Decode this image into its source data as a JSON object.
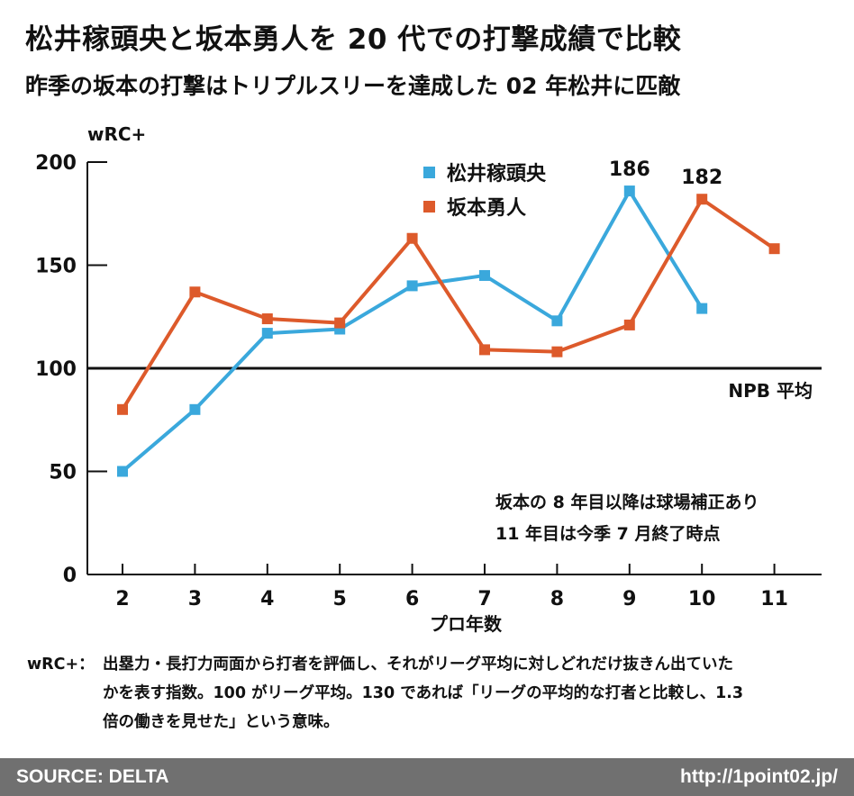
{
  "title": "松井稼頭央と坂本勇人を 20 代での打撃成績で比較",
  "subtitle": "昨季の坂本の打撃はトリプルスリーを達成した 02 年松井に匹敵",
  "chart_data": {
    "type": "line",
    "ylabel": "wRC+",
    "xlabel": "プロ年数",
    "categories": [
      2,
      3,
      4,
      5,
      6,
      7,
      8,
      9,
      10,
      11
    ],
    "ylim": [
      0,
      200
    ],
    "yticks": [
      0,
      50,
      100,
      150,
      200
    ],
    "series": [
      {
        "name": "松井稼頭央",
        "color": "#3aa8dc",
        "marker": "square",
        "values": [
          50,
          80,
          117,
          119,
          140,
          145,
          123,
          186,
          129,
          null
        ]
      },
      {
        "name": "坂本勇人",
        "color": "#dd5a2b",
        "marker": "square",
        "values": [
          80,
          137,
          124,
          122,
          163,
          109,
          108,
          121,
          182,
          158
        ]
      }
    ],
    "reference_line": {
      "value": 100,
      "label": "NPB 平均"
    },
    "data_labels": [
      {
        "series": "松井稼頭央",
        "x": 9,
        "value": 186,
        "text": "186"
      },
      {
        "series": "坂本勇人",
        "x": 10,
        "value": 182,
        "text": "182"
      }
    ],
    "legend_position": "top-center",
    "annotations": [
      "坂本の 8 年目以降は球場補正あり",
      "11 年目は今季 7 月終了時点"
    ]
  },
  "footnote": {
    "label": "wRC+：",
    "line1": "出塁力・長打力両面から打者を評価し、それがリーグ平均に対しどれだけ抜きん出ていた",
    "line2": "かを表す指数。100 がリーグ平均。130 であれば「リーグの平均的な打者と比較し、1.3",
    "line3": "倍の働きを見せた」という意味。"
  },
  "footer": {
    "source": "SOURCE: DELTA",
    "url": "http://1point02.jp/"
  }
}
